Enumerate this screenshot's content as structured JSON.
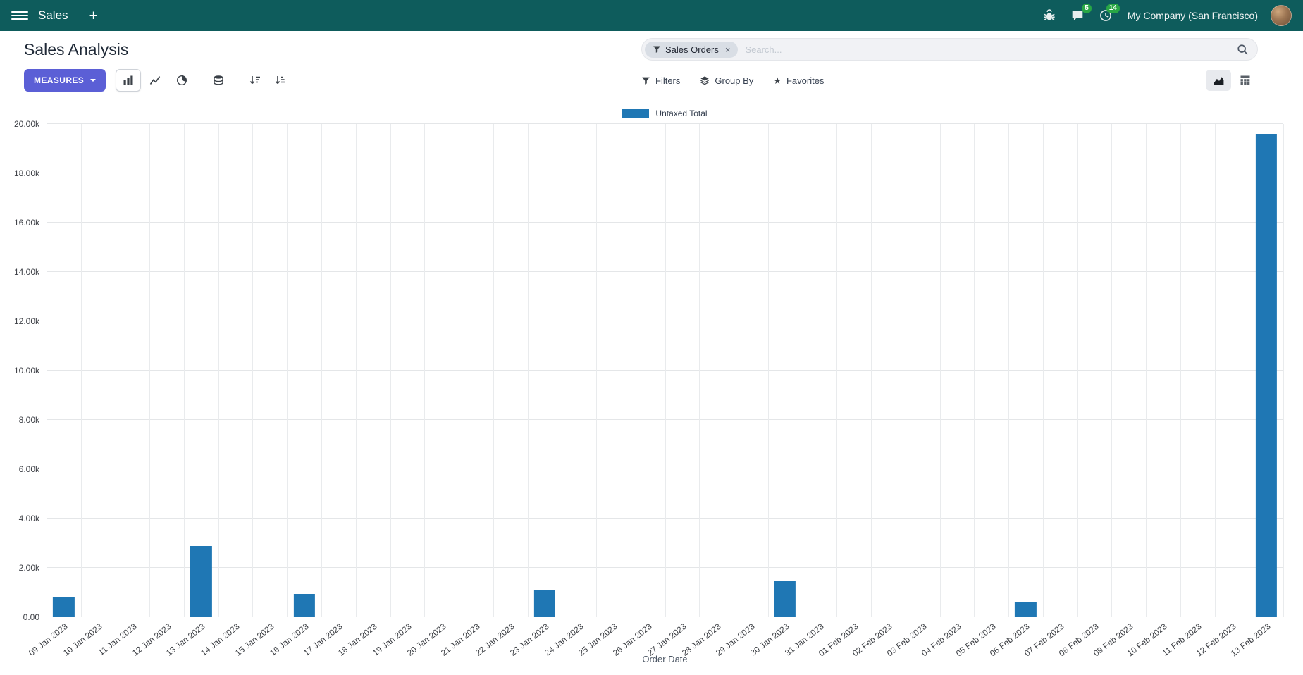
{
  "icons": {
    "plus": "+",
    "star": "★",
    "close": "×"
  },
  "navbar": {
    "app_name": "Sales",
    "company": "My Company (San Francisco)",
    "messages_badge": "5",
    "activities_badge": "14"
  },
  "control_panel": {
    "title": "Sales Analysis",
    "measures_label": "MEASURES",
    "search": {
      "facet_label": "Sales Orders",
      "placeholder": "Search..."
    },
    "buttons": {
      "filters": "Filters",
      "group_by": "Group By",
      "favorites": "Favorites"
    }
  },
  "chart_data": {
    "type": "bar",
    "title": "",
    "legend_position": "top",
    "grid": true,
    "xlabel": "Order Date",
    "ylim": [
      0,
      20000
    ],
    "ytick_labels": [
      "0.00",
      "2.00k",
      "4.00k",
      "6.00k",
      "8.00k",
      "10.00k",
      "12.00k",
      "14.00k",
      "16.00k",
      "18.00k",
      "20.00k"
    ],
    "categories": [
      "09 Jan 2023",
      "10 Jan 2023",
      "11 Jan 2023",
      "12 Jan 2023",
      "13 Jan 2023",
      "14 Jan 2023",
      "15 Jan 2023",
      "16 Jan 2023",
      "17 Jan 2023",
      "18 Jan 2023",
      "19 Jan 2023",
      "20 Jan 2023",
      "21 Jan 2023",
      "22 Jan 2023",
      "23 Jan 2023",
      "24 Jan 2023",
      "25 Jan 2023",
      "26 Jan 2023",
      "27 Jan 2023",
      "28 Jan 2023",
      "29 Jan 2023",
      "30 Jan 2023",
      "31 Jan 2023",
      "01 Feb 2023",
      "02 Feb 2023",
      "03 Feb 2023",
      "04 Feb 2023",
      "05 Feb 2023",
      "06 Feb 2023",
      "07 Feb 2023",
      "08 Feb 2023",
      "09 Feb 2023",
      "10 Feb 2023",
      "11 Feb 2023",
      "12 Feb 2023",
      "13 Feb 2023"
    ],
    "series": [
      {
        "name": "Untaxed Total",
        "color": "#1f77b4",
        "values": [
          800,
          0,
          0,
          0,
          2900,
          0,
          0,
          950,
          0,
          0,
          0,
          0,
          0,
          0,
          1100,
          0,
          0,
          0,
          0,
          0,
          0,
          1500,
          0,
          0,
          0,
          0,
          0,
          0,
          600,
          0,
          0,
          0,
          0,
          0,
          0,
          19600
        ]
      }
    ]
  },
  "colors": {
    "navbar_bg": "#0e5c5c",
    "primary_button": "#5b5fd6",
    "badge_green": "#28a745",
    "bar_blue": "#1f77b4",
    "gridline": "#e4e6e8"
  }
}
